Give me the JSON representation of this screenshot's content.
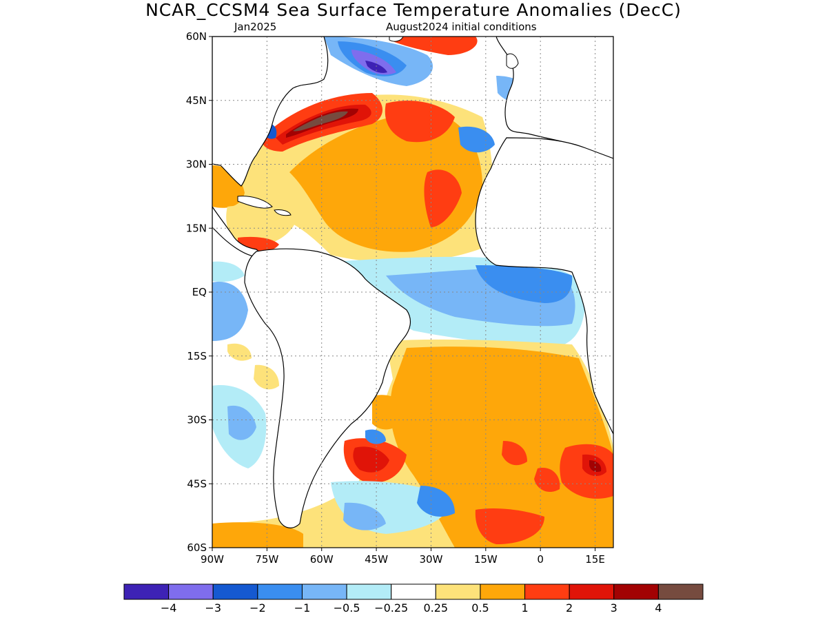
{
  "title": "NCAR_CCSM4 Sea Surface Temperature Anomalies (DecC)",
  "subtitle_left": "Jan2025",
  "subtitle_right": "August2024 initial conditions",
  "map": {
    "lon_range": [
      -90,
      20
    ],
    "lat_range": [
      -60,
      60
    ],
    "lat_ticks": [
      {
        "value": 60,
        "label": "60N"
      },
      {
        "value": 45,
        "label": "45N"
      },
      {
        "value": 30,
        "label": "30N"
      },
      {
        "value": 15,
        "label": "15N"
      },
      {
        "value": 0,
        "label": "EQ"
      },
      {
        "value": -15,
        "label": "15S"
      },
      {
        "value": -30,
        "label": "30S"
      },
      {
        "value": -45,
        "label": "45S"
      },
      {
        "value": -60,
        "label": "60S"
      }
    ],
    "lon_ticks": [
      {
        "value": -90,
        "label": "90W"
      },
      {
        "value": -75,
        "label": "75W"
      },
      {
        "value": -60,
        "label": "60W"
      },
      {
        "value": -45,
        "label": "45W"
      },
      {
        "value": -30,
        "label": "30W"
      },
      {
        "value": -15,
        "label": "15W"
      },
      {
        "value": 0,
        "label": "0"
      },
      {
        "value": 15,
        "label": "15E"
      }
    ],
    "grid": true
  },
  "colorbar": {
    "colors": [
      "#3d22b5",
      "#7f6ded",
      "#1559d1",
      "#3a8ef0",
      "#77b6f7",
      "#b3ecf7",
      "#ffffff",
      "#fde27a",
      "#fea70a",
      "#ff3d12",
      "#e01408",
      "#a20203",
      "#764b3f"
    ],
    "labels": [
      "−4",
      "−3",
      "−2",
      "−1",
      "−0.5",
      "−0.25",
      "0.25",
      "0.5",
      "1",
      "2",
      "3",
      "4"
    ]
  }
}
